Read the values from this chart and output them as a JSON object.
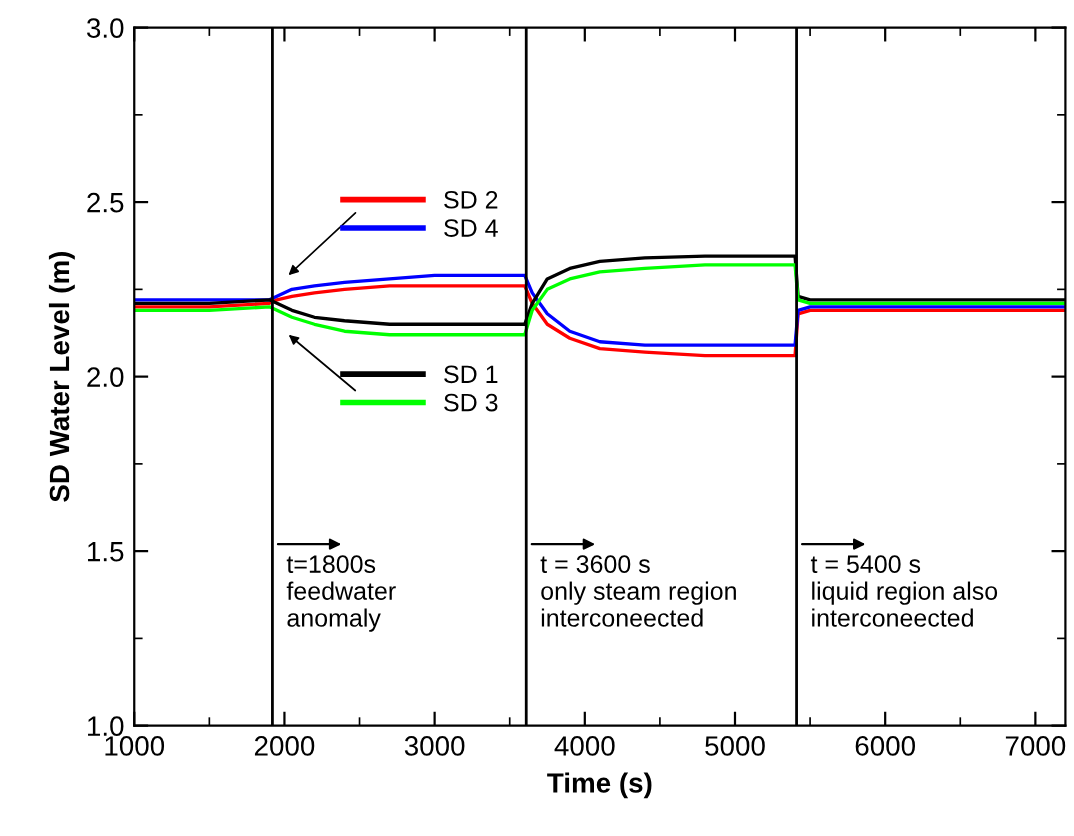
{
  "chart_data": {
    "type": "line",
    "xlabel": "Time (s)",
    "ylabel": "SD Water Level (m)",
    "xlim": [
      1000,
      7200
    ],
    "xticks": [
      1000,
      2000,
      3000,
      4000,
      5000,
      6000,
      7000
    ],
    "ylim": [
      1.0,
      3.0
    ],
    "yticks": [
      {
        "value": 1.0,
        "label": "1.0"
      },
      {
        "value": 1.5,
        "label": "1.5"
      },
      {
        "value": 2.0,
        "label": "2.0"
      },
      {
        "value": 2.5,
        "label": "2.5"
      },
      {
        "value": 3.0,
        "label": "3.0"
      }
    ],
    "grid": false,
    "legend": "center left",
    "marker": "none",
    "line_style": "solid",
    "x": [
      1000,
      1500,
      1900,
      1950,
      2050,
      2200,
      2400,
      2700,
      3000,
      3300,
      3600,
      3650,
      3750,
      3900,
      4100,
      4400,
      4800,
      5200,
      5400,
      5420,
      5500,
      6000,
      6500,
      7200
    ],
    "series": [
      {
        "name": "SD 2",
        "color": "#ff0000",
        "values": [
          2.2,
          2.2,
          2.21,
          2.22,
          2.23,
          2.24,
          2.25,
          2.26,
          2.26,
          2.26,
          2.26,
          2.21,
          2.15,
          2.11,
          2.08,
          2.07,
          2.06,
          2.06,
          2.06,
          2.18,
          2.19,
          2.19,
          2.19,
          2.19
        ]
      },
      {
        "name": "SD 4",
        "color": "#0000ff",
        "values": [
          2.22,
          2.22,
          2.22,
          2.23,
          2.25,
          2.26,
          2.27,
          2.28,
          2.29,
          2.29,
          2.29,
          2.24,
          2.18,
          2.13,
          2.1,
          2.09,
          2.09,
          2.09,
          2.09,
          2.19,
          2.2,
          2.2,
          2.2,
          2.2
        ]
      },
      {
        "name": "SD 1",
        "color": "#000000",
        "values": [
          2.21,
          2.21,
          2.22,
          2.21,
          2.19,
          2.17,
          2.16,
          2.15,
          2.15,
          2.15,
          2.15,
          2.21,
          2.28,
          2.31,
          2.33,
          2.34,
          2.345,
          2.345,
          2.345,
          2.23,
          2.22,
          2.22,
          2.22,
          2.22
        ]
      },
      {
        "name": "SD 3",
        "color": "#00ff00",
        "values": [
          2.19,
          2.19,
          2.2,
          2.19,
          2.17,
          2.15,
          2.13,
          2.12,
          2.12,
          2.12,
          2.12,
          2.19,
          2.25,
          2.28,
          2.3,
          2.31,
          2.32,
          2.32,
          2.32,
          2.22,
          2.21,
          2.21,
          2.21,
          2.21
        ]
      }
    ],
    "ref_lines": [
      {
        "axis": "x",
        "value": 1920,
        "label": null,
        "color": "#000000"
      },
      {
        "axis": "x",
        "value": 3610,
        "label": null,
        "color": "#000000"
      },
      {
        "axis": "x",
        "value": 5410,
        "label": null,
        "color": "#000000"
      }
    ],
    "annotations": [
      {
        "text": "t=1800s\nfeedwater\nanomaly",
        "x": 1920,
        "y": 1.52
      },
      {
        "text": "t = 3600 s\nonly steam region\ninterconeected",
        "x": 3610,
        "y": 1.52
      },
      {
        "text": "t = 5400 s\nliquid region also\ninterconeected",
        "x": 5410,
        "y": 1.52
      }
    ]
  }
}
